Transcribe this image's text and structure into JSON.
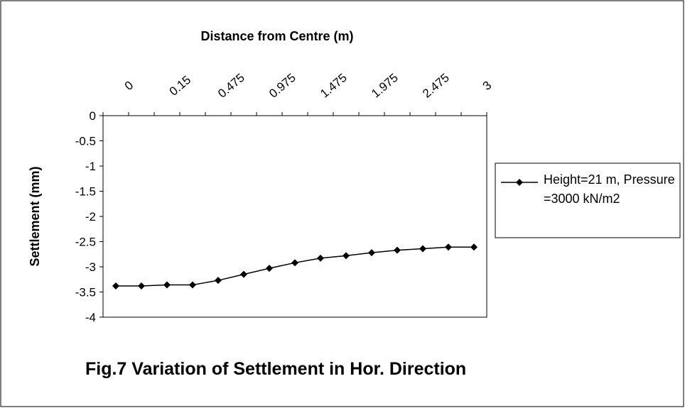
{
  "chart_data": {
    "type": "line",
    "title": "Fig.7 Variation of Settlement in Hor. Direction",
    "x_label": "Distance from Centre (m)",
    "y_label": "Settlement (mm)",
    "categories": [
      "0",
      null,
      "0.15",
      null,
      "0.475",
      null,
      "0.975",
      null,
      "1.475",
      null,
      "1.975",
      null,
      "2.475",
      null,
      "3"
    ],
    "series": [
      {
        "name": "Height=21 m, Pressure =3000 kN/m2",
        "color": "#000000",
        "values": [
          -3.38,
          -3.38,
          -3.36,
          -3.36,
          -3.27,
          -3.15,
          -3.03,
          -2.92,
          -2.83,
          -2.78,
          -2.72,
          -2.67,
          -2.64,
          -2.61,
          -2.61
        ]
      }
    ],
    "ylim": [
      -4,
      0
    ],
    "yticks": [
      0,
      -0.5,
      -1,
      -1.5,
      -2,
      -2.5,
      -3,
      -3.5,
      -4
    ],
    "x_axis_position": "top",
    "legend": "right"
  }
}
